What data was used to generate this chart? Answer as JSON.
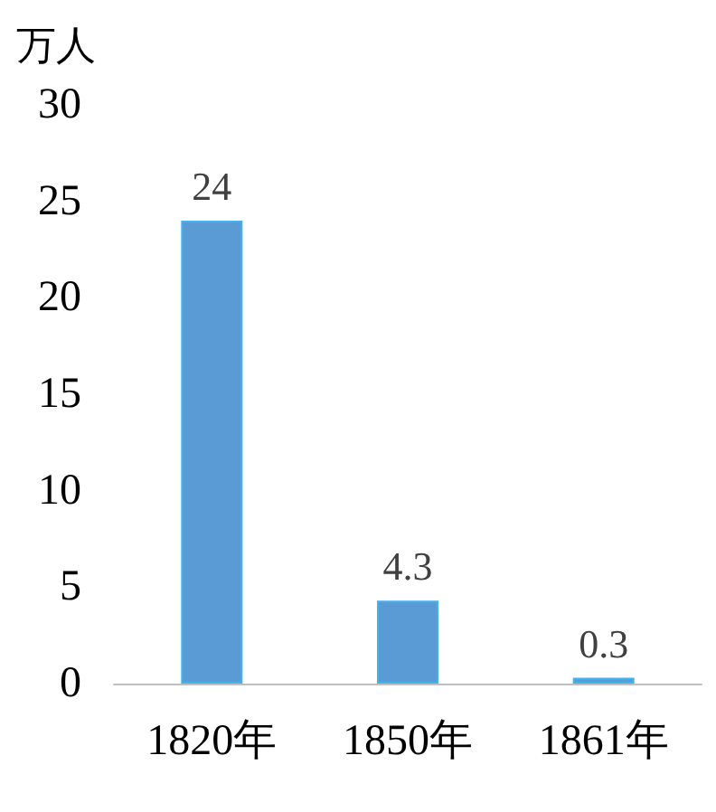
{
  "chart_data": {
    "type": "bar",
    "ylabel": "万人",
    "categories": [
      "1820年",
      "1850年",
      "1861年"
    ],
    "values": [
      24,
      4.3,
      0.3
    ],
    "color": "#5b9bd5",
    "ylim": [
      0,
      30
    ],
    "yticks": [
      0,
      5,
      10,
      15,
      20,
      25,
      30
    ],
    "grid": false,
    "data_labels": true
  }
}
